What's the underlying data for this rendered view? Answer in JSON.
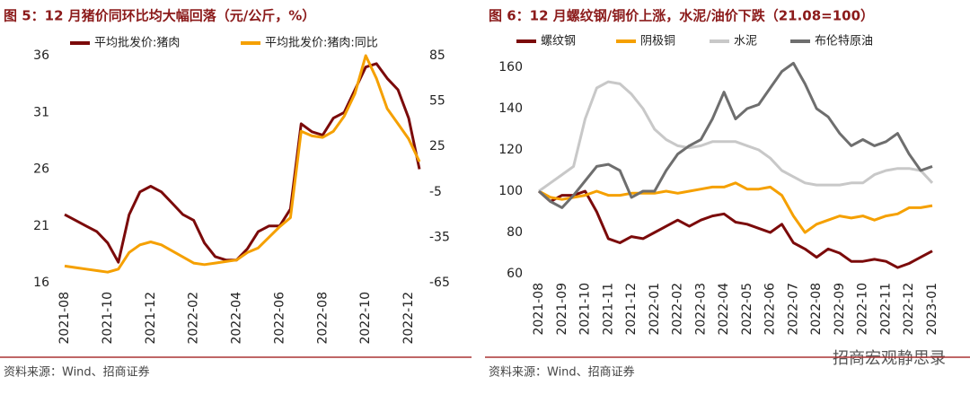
{
  "chart_data": [
    {
      "type": "line",
      "title": "图 5：12 月猪价同环比均大幅回落（元/公斤，%）",
      "source": "资料来源：Wind、招商证券",
      "categories": [
        "2021-08",
        null,
        null,
        null,
        "2021-10",
        null,
        null,
        null,
        "2021-12",
        null,
        null,
        null,
        "2022-02",
        null,
        null,
        null,
        "2022-04",
        null,
        null,
        null,
        "2022-06",
        null,
        null,
        null,
        "2022-08",
        null,
        null,
        null,
        "2022-10",
        null,
        null,
        null,
        "2022-12",
        null
      ],
      "ylim": [
        16,
        36
      ],
      "yticks": [
        16,
        21,
        26,
        31,
        36
      ],
      "y2lim": [
        -65,
        85
      ],
      "y2ticks": [
        -65,
        -35,
        -5,
        25,
        55,
        85
      ],
      "series": [
        {
          "name": "平均批发价:猪肉",
          "color": "#7b0a0a",
          "values": [
            22.0,
            21.5,
            21.0,
            20.5,
            19.5,
            17.8,
            22.0,
            24.0,
            24.5,
            24.0,
            23.0,
            22.0,
            21.5,
            19.5,
            18.3,
            18.0,
            18.0,
            19.0,
            20.5,
            21.0,
            21.0,
            22.5,
            30.0,
            29.3,
            29.0,
            30.5,
            31.0,
            33.0,
            35.0,
            35.3,
            34.0,
            33.0,
            30.5,
            26.0
          ]
        },
        {
          "name": "平均批发价:猪肉:同比",
          "color": "#f5a000",
          "axis": "y2",
          "values": [
            -54,
            -55,
            -56,
            -57,
            -58,
            -56,
            -45,
            -40,
            -38,
            -40,
            -44,
            -48,
            -52,
            -53,
            -52,
            -51,
            -50,
            -45,
            -42,
            -35,
            -28,
            -22,
            35,
            32,
            31,
            35,
            45,
            60,
            85,
            70,
            50,
            40,
            30,
            15
          ]
        }
      ]
    },
    {
      "type": "line",
      "title": "图 6：12 月螺纹钢/铜价上涨，水泥/油价下跌（21.08=100）",
      "source": "资料来源：Wind、招商证券",
      "categories": [
        "2021-08",
        null,
        "2021-09",
        null,
        "2021-10",
        null,
        "2021-11",
        null,
        "2021-12",
        null,
        "2022-01",
        null,
        "2022-02",
        null,
        "2022-03",
        null,
        "2022-04",
        null,
        "2022-05",
        null,
        "2022-06",
        null,
        "2022-07",
        null,
        "2022-08",
        null,
        "2022-09",
        null,
        "2022-10",
        null,
        "2022-11",
        null,
        "2022-12",
        null,
        "2023-01"
      ],
      "ylim": [
        60,
        160
      ],
      "yticks": [
        60,
        80,
        100,
        120,
        140,
        160
      ],
      "series": [
        {
          "name": "螺纹钢",
          "color": "#7b0a0a",
          "values": [
            100,
            95,
            98,
            98,
            100,
            90,
            77,
            75,
            78,
            77,
            80,
            83,
            86,
            83,
            86,
            88,
            89,
            85,
            84,
            82,
            80,
            84,
            75,
            72,
            68,
            72,
            70,
            66,
            66,
            67,
            66,
            63,
            65,
            68,
            71
          ]
        },
        {
          "name": "阴极铜",
          "color": "#f5a000",
          "values": [
            100,
            97,
            96,
            97,
            98,
            100,
            98,
            98,
            99,
            99,
            99,
            100,
            99,
            100,
            101,
            102,
            102,
            104,
            101,
            101,
            102,
            98,
            88,
            80,
            84,
            86,
            88,
            87,
            88,
            86,
            88,
            89,
            92,
            92,
            93
          ]
        },
        {
          "name": "水泥",
          "color": "#c8c8c8",
          "values": [
            100,
            104,
            108,
            112,
            135,
            150,
            153,
            152,
            147,
            140,
            130,
            125,
            122,
            121,
            122,
            124,
            124,
            124,
            122,
            120,
            116,
            110,
            107,
            104,
            103,
            103,
            103,
            104,
            104,
            108,
            110,
            111,
            111,
            110,
            104
          ]
        },
        {
          "name": "布伦特原油",
          "color": "#6e6e6e",
          "values": [
            100,
            95,
            92,
            98,
            105,
            112,
            113,
            110,
            97,
            100,
            100,
            110,
            118,
            122,
            125,
            135,
            148,
            135,
            140,
            142,
            150,
            158,
            162,
            152,
            140,
            136,
            128,
            122,
            125,
            122,
            124,
            128,
            118,
            110,
            112
          ]
        }
      ]
    }
  ],
  "watermark": "招商宏观静思录"
}
